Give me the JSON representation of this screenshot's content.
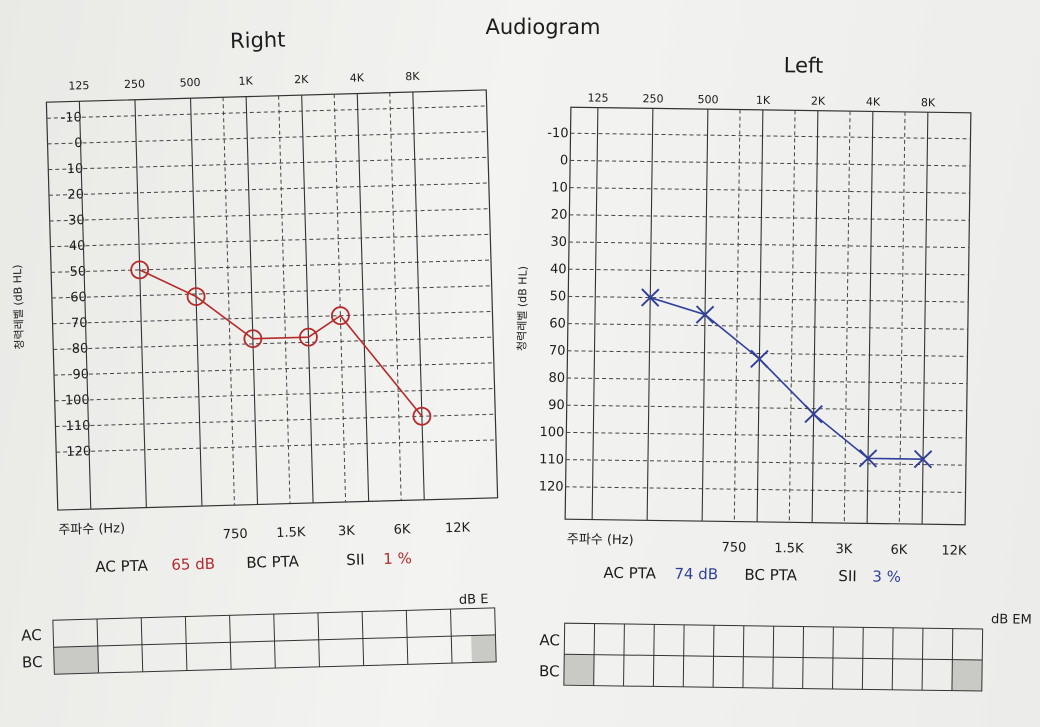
{
  "page_title": "Audiogram",
  "right": {
    "title": "Right",
    "y_axis_label": "청력레벨 (dB HL)",
    "x_axis_label": "주파수 (Hz)",
    "top_ticks": [
      "125",
      "250",
      "500",
      "1K",
      "2K",
      "4K",
      "8K"
    ],
    "bottom_ticks": [
      "750",
      "1.5K",
      "3K",
      "6K",
      "12K"
    ],
    "ac_pta_label": "AC PTA",
    "ac_pta_value": "65 dB",
    "bc_pta_label": "BC PTA",
    "sii_label": "SII",
    "sii_value": "1 %",
    "table_unit": "dB E",
    "row_labels": [
      "AC",
      "BC"
    ]
  },
  "left": {
    "title": "Left",
    "y_axis_label": "청력레벨 (dB HL)",
    "x_axis_label": "주파수 (Hz)",
    "top_ticks": [
      "125",
      "250",
      "500",
      "1K",
      "2K",
      "4K",
      "8K"
    ],
    "bottom_ticks": [
      "750",
      "1.5K",
      "3K",
      "6K",
      "12K"
    ],
    "ac_pta_label": "AC PTA",
    "ac_pta_value": "74 dB",
    "bc_pta_label": "BC PTA",
    "sii_label": "SII",
    "sii_value": "3 %",
    "table_unit": "dB EM",
    "row_labels": [
      "AC",
      "BC"
    ]
  },
  "chart_data": [
    {
      "type": "line",
      "title": "Right",
      "xlabel": "주파수 (Hz)",
      "ylabel": "청력레벨 (dB HL)",
      "y_ticks": [
        "-10",
        "0",
        "10",
        "20",
        "30",
        "40",
        "50",
        "60",
        "70",
        "80",
        "90",
        "100",
        "110",
        "120"
      ],
      "ylim": [
        -15,
        125
      ],
      "y_inverted": true,
      "x_scale": "log2 (octaves)",
      "grid": true,
      "color": "#b52a2a",
      "marker": "circle",
      "points": [
        {
          "freq": "250",
          "db": 50
        },
        {
          "freq": "500",
          "db": 61
        },
        {
          "freq": "1K",
          "db": 78
        },
        {
          "freq": "2K",
          "db": 78
        },
        {
          "freq": "3K",
          "db": 70
        },
        {
          "freq": "8K",
          "db": 110
        }
      ]
    },
    {
      "type": "line",
      "title": "Left",
      "xlabel": "주파수 (Hz)",
      "ylabel": "청력레벨 (dB HL)",
      "y_ticks": [
        "-10",
        "0",
        "10",
        "20",
        "30",
        "40",
        "50",
        "60",
        "70",
        "80",
        "90",
        "100",
        "110",
        "120"
      ],
      "ylim": [
        -15,
        125
      ],
      "y_inverted": true,
      "x_scale": "log2 (octaves)",
      "grid": true,
      "color": "#2f3f9a",
      "marker": "x",
      "points": [
        {
          "freq": "250",
          "db": 50
        },
        {
          "freq": "500",
          "db": 56
        },
        {
          "freq": "1K",
          "db": 72
        },
        {
          "freq": "2K",
          "db": 92
        },
        {
          "freq": "4K",
          "db": 108
        },
        {
          "freq": "8K",
          "db": 108
        }
      ]
    }
  ]
}
